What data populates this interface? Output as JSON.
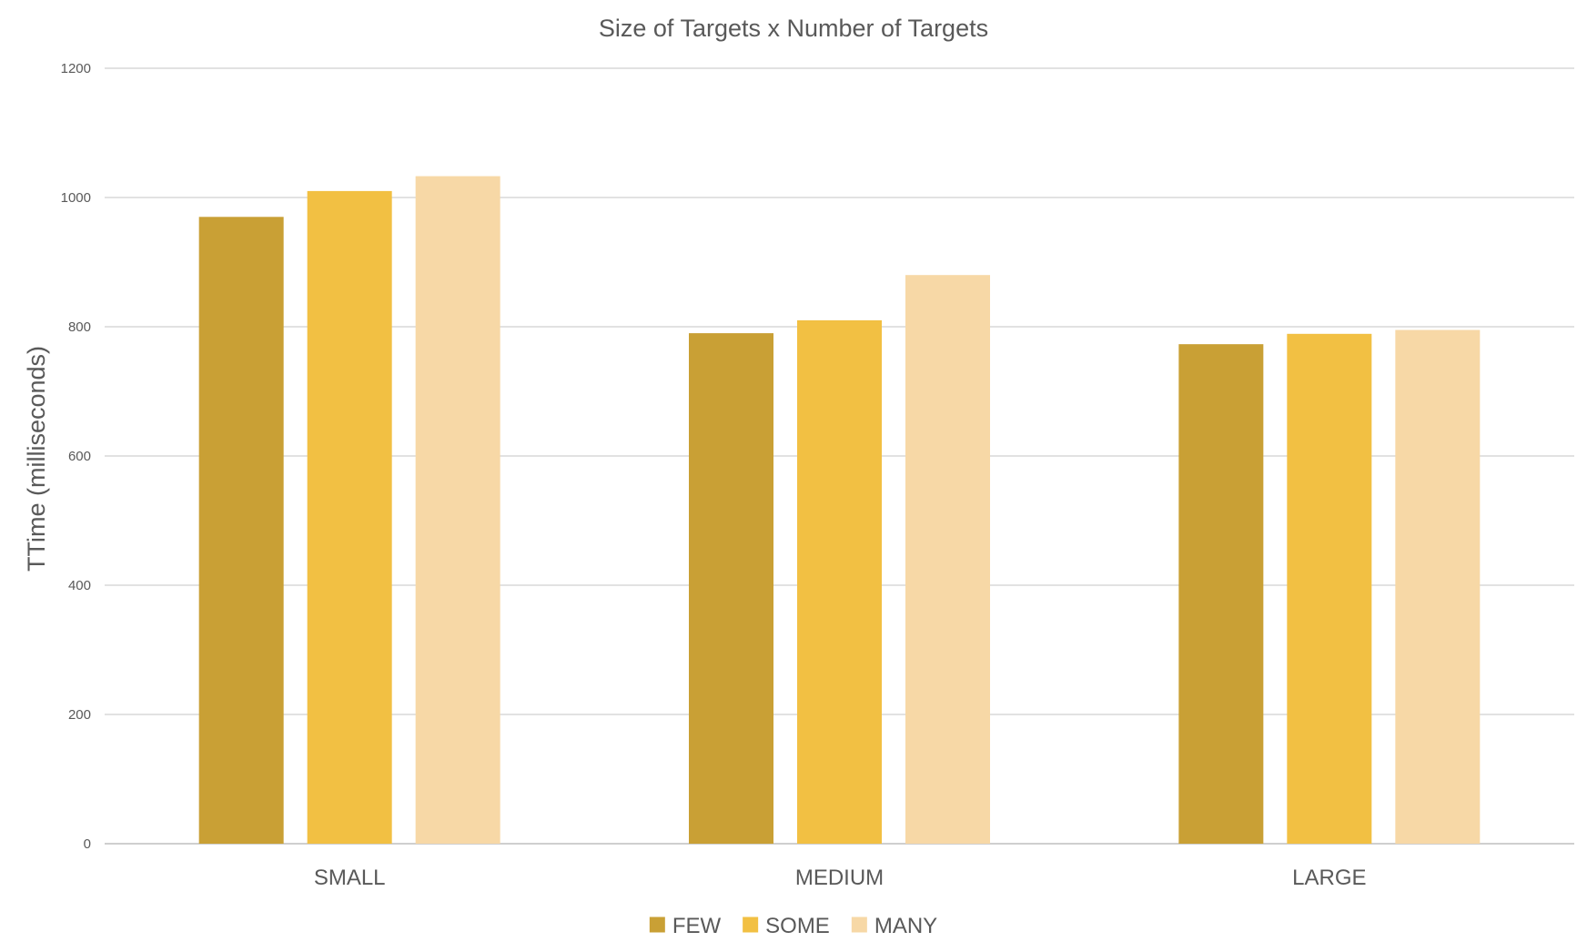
{
  "chart_data": {
    "type": "bar",
    "title": "Size of Targets x Number of Targets",
    "xlabel": "",
    "ylabel": "TTime (milliseconds)",
    "categories": [
      "SMALL",
      "MEDIUM",
      "LARGE"
    ],
    "series": [
      {
        "name": "FEW",
        "color": "#C9A035",
        "values": [
          970,
          790,
          773
        ]
      },
      {
        "name": "SOME",
        "color": "#F2C043",
        "values": [
          1010,
          810,
          789
        ]
      },
      {
        "name": "MANY",
        "color": "#F7D8A6",
        "values": [
          1033,
          880,
          795
        ]
      }
    ],
    "ylim": [
      0,
      1200
    ],
    "yticks": [
      0,
      200,
      400,
      600,
      800,
      1000,
      1200
    ],
    "grid": true,
    "legend_position": "bottom"
  }
}
